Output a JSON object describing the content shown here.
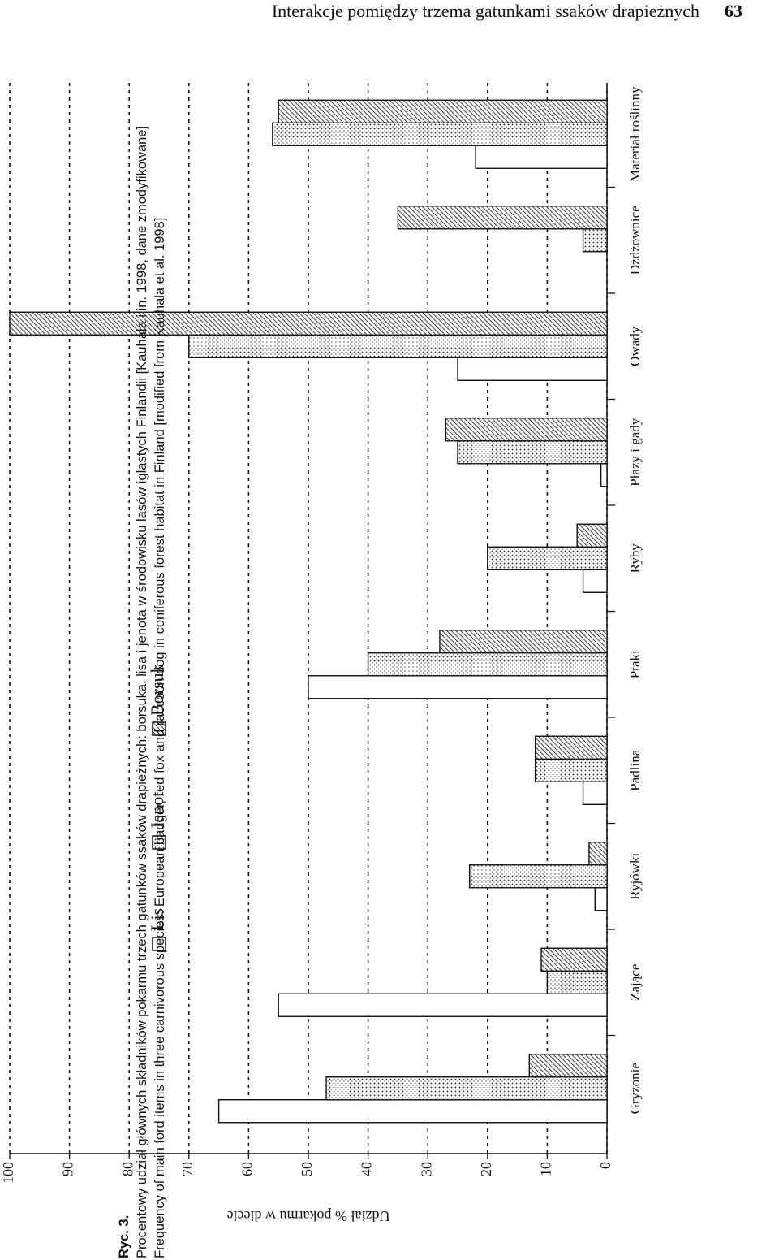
{
  "header": {
    "title": "Interakcje pomiędzy trzema gatunkami ssaków drapieżnych",
    "page_number": "63"
  },
  "caption": {
    "label": "Ryc. 3.",
    "polish": "Procentowy udział głównych składników pokarmu trzech gatunków ssaków drapieżnych: borsuka, lisa i jenota w środowisku lasów iglastych Finlandii [Kauhala i in. 1998, dane zmodyfikowane]",
    "english": "Frequency of main ford items in three carnivorous species: European badger, red fox and raccoon dog in coniferous forest habitat in Finland [modified from Kauhala et al. 1998]"
  },
  "chart_data": {
    "type": "bar",
    "rotated": true,
    "y_label": "Udział % pokarmu w diecie",
    "categories": [
      "Gryzonie",
      "Zające",
      "Ryjówki",
      "Padlina",
      "Ptaki",
      "Ryby",
      "Płazy i gady",
      "Owady",
      "Dżdżownice",
      "Materiał roślinny"
    ],
    "series": [
      {
        "name": "Lis",
        "color": "#ffffff",
        "pattern": "none",
        "values": [
          65,
          55,
          2,
          4,
          50,
          4,
          1,
          25,
          0,
          22
        ]
      },
      {
        "name": "Jenot",
        "color": "#ffffff",
        "pattern": "dots",
        "values": [
          47,
          10,
          23,
          12,
          40,
          20,
          25,
          70,
          4,
          56
        ]
      },
      {
        "name": "Borsuk",
        "color": "#ffffff",
        "pattern": "hatch",
        "values": [
          13,
          11,
          3,
          12,
          28,
          5,
          27,
          100,
          35,
          55
        ]
      }
    ],
    "ylim": [
      0,
      100
    ],
    "yticks": [
      0,
      10,
      20,
      30,
      40,
      50,
      60,
      70,
      80,
      90,
      100
    ],
    "grid": true,
    "legend": "top"
  }
}
